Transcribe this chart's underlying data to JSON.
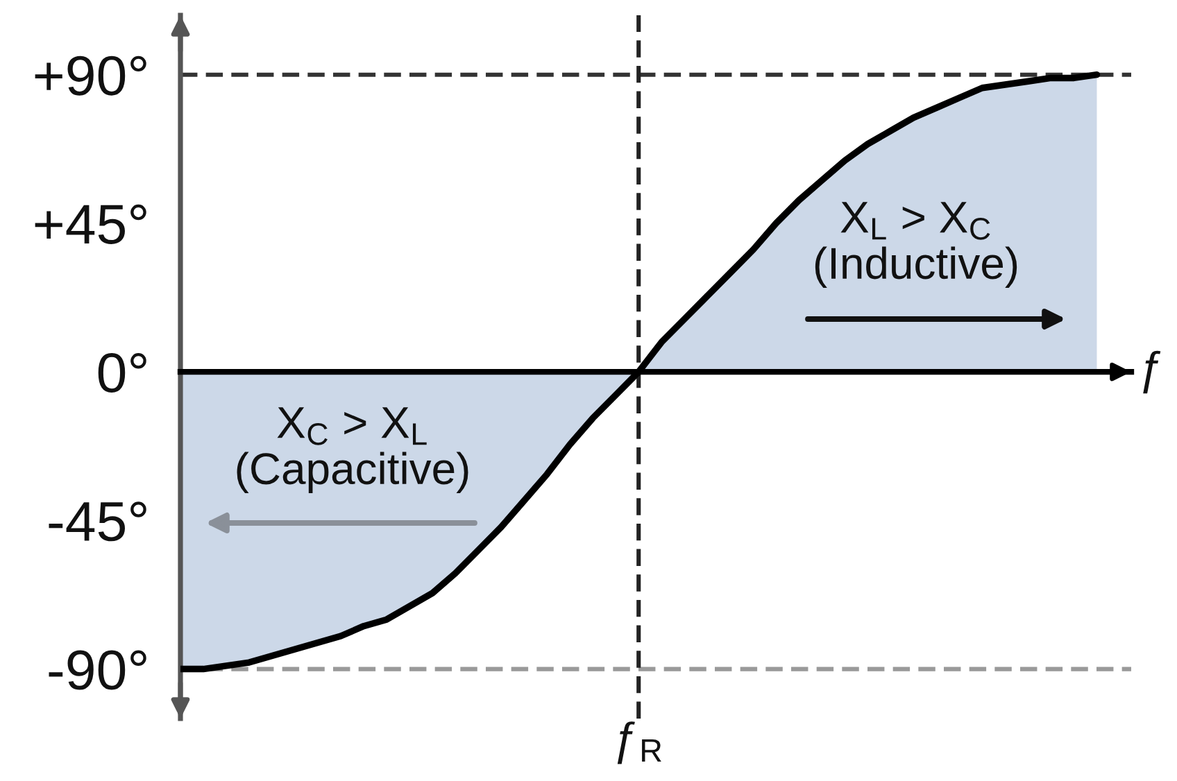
{
  "chart_data": {
    "type": "area",
    "categories": [
      null,
      null,
      null,
      null,
      null,
      null,
      null,
      null,
      null,
      null,
      null,
      null,
      null,
      null,
      null,
      null,
      null,
      null,
      null,
      null,
      "ƒ$_{R}$",
      null,
      null,
      null,
      null,
      null,
      null,
      null,
      null,
      null,
      null,
      null,
      null,
      null,
      null,
      null,
      null,
      null,
      null,
      null,
      null
    ],
    "xlabel": "ƒ",
    "ylim": [
      -105,
      108
    ],
    "yticks": [
      {
        "value": 90,
        "label": "+90°"
      },
      {
        "value": 45,
        "label": "+45°"
      },
      {
        "value": 0,
        "label": "0°"
      },
      {
        "value": -45,
        "label": "-45°"
      },
      {
        "value": -90,
        "label": "-90°"
      }
    ],
    "series": [
      {
        "color": "#ccd8e8",
        "values": [
          -90,
          -90,
          -89,
          -88,
          -86,
          -84,
          -82,
          -80,
          -77,
          -75,
          -71,
          -67,
          -61,
          -54,
          -47,
          -39,
          -31,
          -22,
          -14,
          -7,
          0,
          9,
          16,
          23,
          30,
          37,
          45,
          52,
          58,
          64,
          69,
          73,
          77,
          80,
          83,
          86,
          87,
          88,
          89,
          89,
          90
        ]
      }
    ],
    "ref_lines": [
      {
        "axis": "y",
        "value": 90,
        "color": "#333333",
        "line_style": "dashed"
      },
      {
        "axis": "y",
        "value": -90,
        "color": "#999999",
        "line_style": "dashed"
      },
      {
        "axis": "x",
        "value": "ƒ$_{R}$",
        "color": "#222222",
        "line_style": "dashed"
      }
    ],
    "annotations": [
      "X$_{L}$ > X$_{C}$\n(Inductive)",
      "X$_{C}$ > X$_{L}$\n(Capacitive)"
    ]
  }
}
